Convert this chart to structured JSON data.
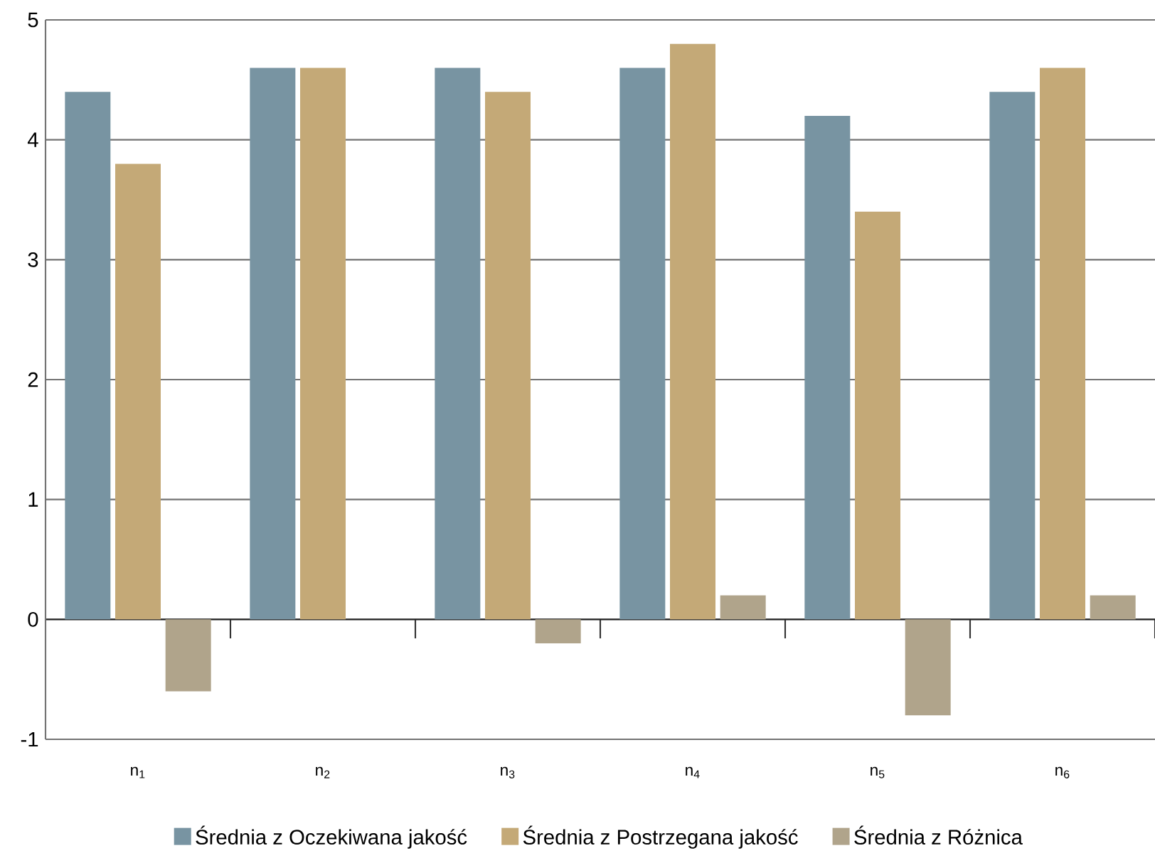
{
  "chart_data": {
    "type": "bar",
    "categories": [
      "n$_{1}$",
      "n$_{2}$",
      "n$_{3}$",
      "n$_{4}$",
      "n$_{5}$",
      "n$_{6}$"
    ],
    "series": [
      {
        "name": "Średnia z Oczekiwana jakość",
        "color": "#7894a2",
        "values": [
          4.4,
          4.6,
          4.6,
          4.6,
          4.2,
          4.4
        ]
      },
      {
        "name": "Średnia z Postrzegana jakość",
        "color": "#c4a977",
        "values": [
          3.8,
          4.6,
          4.4,
          4.8,
          3.4,
          4.6
        ]
      },
      {
        "name": "Średnia z Różnica",
        "color": "#b0a48b",
        "values": [
          -0.6,
          0,
          -0.2,
          0.2,
          -0.8,
          0.2
        ]
      }
    ],
    "ylim": [
      -1,
      5
    ],
    "yticks": [
      -1,
      0,
      1,
      2,
      3,
      4,
      5
    ],
    "grid": "y",
    "legend": "bottom"
  }
}
